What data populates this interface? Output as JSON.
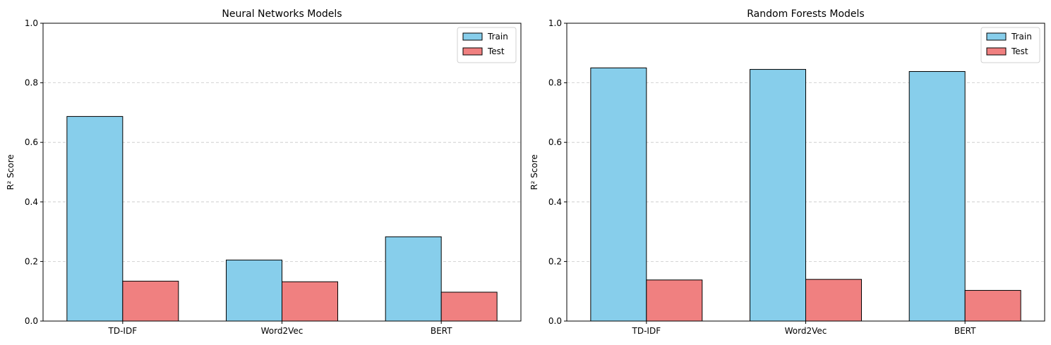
{
  "chart_data": [
    {
      "type": "bar",
      "title": "Neural Networks Models",
      "xlabel": "",
      "ylabel": "R² Score",
      "ylim": [
        0,
        1.0
      ],
      "yticks": [
        "0.0",
        "0.2",
        "0.4",
        "0.6",
        "0.8",
        "1.0"
      ],
      "grid": "y-dashed",
      "legend": "top-right",
      "categories": [
        "TD-IDF",
        "Word2Vec",
        "BERT"
      ],
      "series": [
        {
          "name": "Train",
          "color": "#87ceeb",
          "values": [
            0.687,
            0.205,
            0.283
          ]
        },
        {
          "name": "Test",
          "color": "#f08080",
          "values": [
            0.134,
            0.132,
            0.097
          ]
        }
      ]
    },
    {
      "type": "bar",
      "title": "Random Forests Models",
      "xlabel": "",
      "ylabel": "R² Score",
      "ylim": [
        0,
        1.0
      ],
      "yticks": [
        "0.0",
        "0.2",
        "0.4",
        "0.6",
        "0.8",
        "1.0"
      ],
      "grid": "y-dashed",
      "legend": "top-right",
      "categories": [
        "TD-IDF",
        "Word2Vec",
        "BERT"
      ],
      "series": [
        {
          "name": "Train",
          "color": "#87ceeb",
          "values": [
            0.85,
            0.845,
            0.838
          ]
        },
        {
          "name": "Test",
          "color": "#f08080",
          "values": [
            0.138,
            0.14,
            0.103
          ]
        }
      ]
    }
  ]
}
